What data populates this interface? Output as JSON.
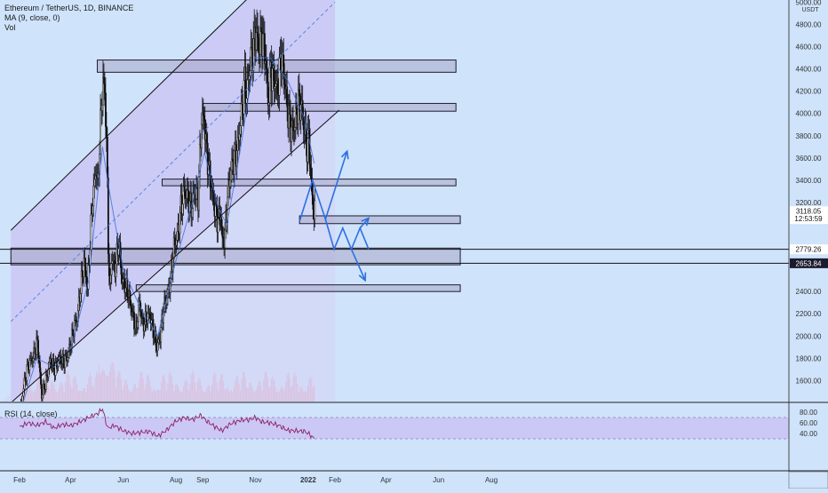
{
  "legend": {
    "symbol": "Ethereum / TetherUS, 1D, BINANCE",
    "ma": "MA (9, close, 0)",
    "vol": "Vol",
    "rsi": "RSI (14, close)"
  },
  "chart_data": {
    "type": "candlestick",
    "symbol": "Ethereum / TetherUS, 1D, BINANCE",
    "price_axis": {
      "unit_label": "USDT",
      "ticks": [
        "5000.00",
        "4800.00",
        "4600.00",
        "4400.00",
        "4200.00",
        "4000.00",
        "3800.00",
        "3600.00",
        "3400.00",
        "3200.00",
        "2400.00",
        "2200.00",
        "2000.00",
        "1800.00",
        "1600.00"
      ],
      "tick_values": [
        5000,
        4800,
        4600,
        4400,
        4200,
        4000,
        3800,
        3600,
        3400,
        3200,
        2400,
        2200,
        2000,
        1800,
        1600
      ],
      "price_labels": [
        {
          "value": 3118.05,
          "text": "3118.05",
          "sub": "12:53:59",
          "color": "#ffffff"
        },
        {
          "value": 2779.26,
          "text": "2779.26",
          "color": "#ffffff"
        },
        {
          "value": 2653.84,
          "text": "2653.84",
          "color": "#1b1b2f"
        }
      ]
    },
    "rsi_axis": {
      "ticks": [
        "80.00",
        "60.00",
        "40.00"
      ],
      "tick_values": [
        80,
        60,
        40
      ]
    },
    "time_axis": {
      "labels": [
        "Feb",
        "Apr",
        "Jun",
        "Aug",
        "Sep",
        "Nov",
        "2022",
        "Feb",
        "Apr",
        "Jun",
        "Aug"
      ],
      "label_days": [
        0,
        59,
        120,
        181,
        212,
        273,
        334,
        365,
        424,
        485,
        546
      ]
    },
    "x_unit": "days from Feb 1 2021 (axis shows months)",
    "series_close": [
      [
        0,
        1320
      ],
      [
        5,
        1580
      ],
      [
        10,
        1750
      ],
      [
        15,
        1810
      ],
      [
        20,
        1950
      ],
      [
        25,
        1460
      ],
      [
        30,
        1600
      ],
      [
        35,
        1780
      ],
      [
        40,
        1700
      ],
      [
        45,
        1800
      ],
      [
        50,
        1760
      ],
      [
        55,
        1820
      ],
      [
        60,
        1980
      ],
      [
        63,
        2100
      ],
      [
        66,
        2150
      ],
      [
        70,
        2430
      ],
      [
        74,
        2660
      ],
      [
        78,
        2420
      ],
      [
        80,
        2700
      ],
      [
        84,
        3250
      ],
      [
        88,
        3500
      ],
      [
        90,
        3350
      ],
      [
        93,
        3900
      ],
      [
        96,
        4300
      ],
      [
        98,
        4150
      ],
      [
        100,
        3800
      ],
      [
        102,
        2800
      ],
      [
        104,
        2400
      ],
      [
        106,
        2700
      ],
      [
        110,
        2600
      ],
      [
        114,
        2850
      ],
      [
        118,
        2500
      ],
      [
        122,
        2450
      ],
      [
        126,
        2350
      ],
      [
        130,
        2200
      ],
      [
        134,
        2050
      ],
      [
        138,
        2300
      ],
      [
        142,
        2100
      ],
      [
        146,
        2150
      ],
      [
        150,
        2200
      ],
      [
        154,
        2050
      ],
      [
        158,
        1900
      ],
      [
        162,
        2000
      ],
      [
        166,
        2250
      ],
      [
        170,
        2350
      ],
      [
        174,
        2500
      ],
      [
        178,
        2800
      ],
      [
        182,
        2900
      ],
      [
        186,
        3150
      ],
      [
        190,
        3300
      ],
      [
        194,
        3250
      ],
      [
        198,
        3150
      ],
      [
        202,
        3300
      ],
      [
        206,
        3250
      ],
      [
        210,
        3950
      ],
      [
        213,
        3950
      ],
      [
        216,
        3650
      ],
      [
        220,
        3400
      ],
      [
        224,
        3200
      ],
      [
        228,
        3050
      ],
      [
        232,
        3100
      ],
      [
        234,
        2850
      ],
      [
        237,
        2900
      ],
      [
        240,
        3250
      ],
      [
        244,
        3500
      ],
      [
        248,
        3600
      ],
      [
        252,
        3700
      ],
      [
        256,
        4000
      ],
      [
        260,
        4300
      ],
      [
        262,
        4150
      ],
      [
        266,
        4450
      ],
      [
        270,
        4600
      ],
      [
        273,
        4750
      ],
      [
        276,
        4600
      ],
      [
        280,
        4700
      ],
      [
        284,
        4500
      ],
      [
        287,
        4100
      ],
      [
        290,
        4400
      ],
      [
        294,
        4300
      ],
      [
        298,
        4200
      ],
      [
        302,
        4550
      ],
      [
        306,
        4300
      ],
      [
        310,
        4000
      ],
      [
        314,
        3850
      ],
      [
        318,
        3900
      ],
      [
        322,
        4100
      ],
      [
        326,
        4050
      ],
      [
        328,
        3900
      ],
      [
        330,
        3800
      ],
      [
        332,
        3700
      ],
      [
        334,
        3800
      ],
      [
        336,
        3500
      ],
      [
        338,
        3250
      ],
      [
        340,
        3100
      ],
      [
        341,
        3118
      ]
    ],
    "ma9": [
      [
        0,
        1300
      ],
      [
        20,
        1800
      ],
      [
        40,
        1720
      ],
      [
        60,
        1900
      ],
      [
        80,
        2500
      ],
      [
        96,
        3700
      ],
      [
        104,
        3300
      ],
      [
        120,
        2600
      ],
      [
        140,
        2250
      ],
      [
        160,
        2000
      ],
      [
        180,
        2650
      ],
      [
        200,
        3200
      ],
      [
        214,
        3650
      ],
      [
        230,
        3150
      ],
      [
        240,
        3000
      ],
      [
        256,
        3700
      ],
      [
        272,
        4500
      ],
      [
        290,
        4500
      ],
      [
        310,
        4300
      ],
      [
        330,
        3950
      ],
      [
        341,
        3550
      ]
    ],
    "channel": {
      "upper": [
        [
          -10,
          2950
        ],
        [
          290,
          5230
        ]
      ],
      "lower": [
        [
          -10,
          1400
        ],
        [
          370,
          4030
        ]
      ],
      "mid_dashed": [
        [
          -10,
          2130
        ],
        [
          365,
          5000
        ]
      ],
      "shade_end_day": 365
    },
    "zones": [
      {
        "d0": 90,
        "d1": 505,
        "p0": 4370,
        "p1": 4480
      },
      {
        "d0": 212,
        "d1": 505,
        "p0": 4020,
        "p1": 4090
      },
      {
        "d0": 165,
        "d1": 505,
        "p0": 3350,
        "p1": 3410
      },
      {
        "d0": 324,
        "d1": 510,
        "p0": 3010,
        "p1": 3080
      },
      {
        "d0": -10,
        "d1": 510,
        "p0": 2640,
        "p1": 2790
      },
      {
        "d0": 135,
        "d1": 510,
        "p0": 2400,
        "p1": 2460
      }
    ],
    "hlines": [
      2779.26,
      2653.84
    ],
    "projection_up": [
      [
        324,
        3030
      ],
      [
        339,
        3400
      ],
      [
        354,
        3050
      ],
      [
        379,
        3660
      ]
    ],
    "projection_down": [
      [
        354,
        3050
      ],
      [
        364,
        2780
      ],
      [
        374,
        2970
      ],
      [
        384,
        2780
      ],
      [
        394,
        2970
      ],
      [
        404,
        2780
      ]
    ],
    "projection_arrow_up2": [
      [
        394,
        2970
      ],
      [
        404,
        3060
      ]
    ],
    "projection_down_arrow": [
      [
        384,
        2780
      ],
      [
        400,
        2500
      ]
    ],
    "rsi": [
      [
        0,
        52
      ],
      [
        10,
        60
      ],
      [
        20,
        55
      ],
      [
        30,
        62
      ],
      [
        40,
        50
      ],
      [
        50,
        57
      ],
      [
        60,
        55
      ],
      [
        70,
        62
      ],
      [
        80,
        70
      ],
      [
        90,
        77
      ],
      [
        96,
        86
      ],
      [
        102,
        50
      ],
      [
        110,
        55
      ],
      [
        120,
        45
      ],
      [
        130,
        40
      ],
      [
        140,
        42
      ],
      [
        150,
        44
      ],
      [
        160,
        35
      ],
      [
        170,
        46
      ],
      [
        180,
        62
      ],
      [
        190,
        70
      ],
      [
        200,
        66
      ],
      [
        210,
        74
      ],
      [
        216,
        64
      ],
      [
        224,
        55
      ],
      [
        234,
        45
      ],
      [
        244,
        58
      ],
      [
        256,
        65
      ],
      [
        266,
        66
      ],
      [
        273,
        70
      ],
      [
        280,
        62
      ],
      [
        290,
        60
      ],
      [
        300,
        55
      ],
      [
        310,
        46
      ],
      [
        320,
        45
      ],
      [
        330,
        44
      ],
      [
        336,
        38
      ],
      [
        341,
        30
      ]
    ],
    "rsi_band": [
      30,
      70
    ],
    "volume": "shown as faint pink bars"
  }
}
